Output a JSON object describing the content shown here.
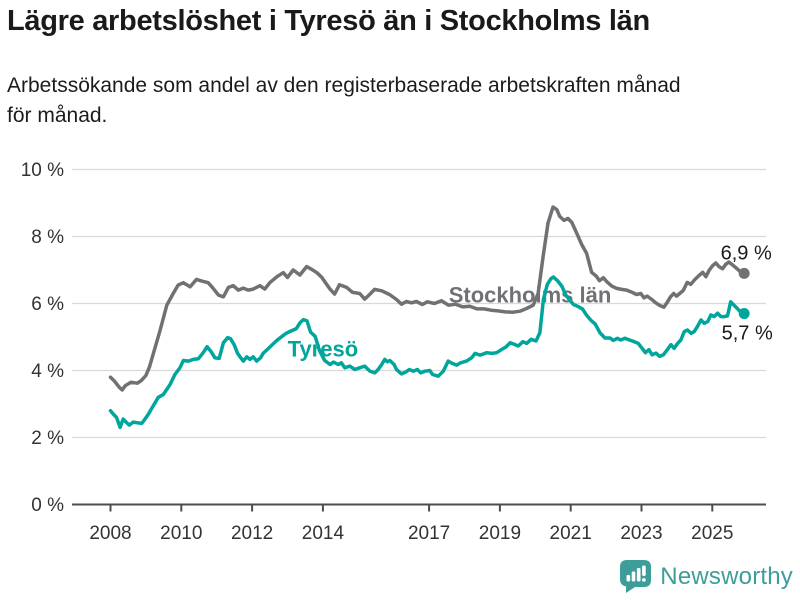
{
  "header": {
    "title": "Lägre arbetslöshet i Tyresö än i Stockholms län",
    "subtitle_line1": "Arbetssökande som andel av den registerbaserade arbetskraften månad",
    "subtitle_line2": "för månad."
  },
  "footer": {
    "brand": "Newsworthy",
    "brand_color": "#3d9d99",
    "logo_icon": "bar-chart-speech-bubble-icon"
  },
  "colors": {
    "grid": "#d9d9d9",
    "axis": "#4c4c4c",
    "tick_text": "#333333",
    "value_label_text": "#1a1a1a"
  },
  "chart_data": {
    "type": "line",
    "title": "Lägre arbetslöshet i Tyresö än i Stockholms län",
    "subtitle": "Arbetssökande som andel av den registerbaserade arbetskraften månad för månad.",
    "unit": "%",
    "grid": "horizontal",
    "legend_position": "inline-labels",
    "x_axis": {
      "ticks": [
        2008,
        2010,
        2012,
        2014,
        2017,
        2019,
        2021,
        2023,
        2025
      ],
      "tick_labels": [
        "2008",
        "2010",
        "2012",
        "2014",
        "2017",
        "2019",
        "2021",
        "2023",
        "2025"
      ],
      "range": [
        2006.9,
        2026.5
      ]
    },
    "y_axis": {
      "ticks": [
        0,
        2,
        4,
        6,
        8,
        10
      ],
      "tick_labels": [
        "0 %",
        "2 %",
        "4 %",
        "6 %",
        "8 %",
        "10 %"
      ],
      "range": [
        0,
        10
      ]
    },
    "series": [
      {
        "name": "Stockholms län",
        "slug": "stockholms-lan",
        "color": "#717175",
        "end_label": "6,9 %",
        "end_value": 6.9,
        "label_anchor": {
          "x": 2019.85,
          "y": 6.27
        },
        "points": [
          [
            2008.0,
            3.8
          ],
          [
            2008.1,
            3.7
          ],
          [
            2008.25,
            3.5
          ],
          [
            2008.33,
            3.42
          ],
          [
            2008.42,
            3.55
          ],
          [
            2008.58,
            3.65
          ],
          [
            2008.75,
            3.62
          ],
          [
            2008.87,
            3.7
          ],
          [
            2009.0,
            3.85
          ],
          [
            2009.1,
            4.1
          ],
          [
            2009.21,
            4.5
          ],
          [
            2009.4,
            5.2
          ],
          [
            2009.59,
            5.95
          ],
          [
            2009.77,
            6.3
          ],
          [
            2009.91,
            6.55
          ],
          [
            2010.06,
            6.62
          ],
          [
            2010.25,
            6.5
          ],
          [
            2010.43,
            6.72
          ],
          [
            2010.58,
            6.67
          ],
          [
            2010.76,
            6.62
          ],
          [
            2010.9,
            6.45
          ],
          [
            2011.05,
            6.25
          ],
          [
            2011.19,
            6.2
          ],
          [
            2011.33,
            6.48
          ],
          [
            2011.47,
            6.53
          ],
          [
            2011.61,
            6.4
          ],
          [
            2011.75,
            6.46
          ],
          [
            2011.89,
            6.4
          ],
          [
            2012.03,
            6.43
          ],
          [
            2012.22,
            6.53
          ],
          [
            2012.36,
            6.43
          ],
          [
            2012.5,
            6.62
          ],
          [
            2012.7,
            6.8
          ],
          [
            2012.88,
            6.92
          ],
          [
            2013.0,
            6.78
          ],
          [
            2013.16,
            7.0
          ],
          [
            2013.35,
            6.85
          ],
          [
            2013.54,
            7.1
          ],
          [
            2013.68,
            7.02
          ],
          [
            2013.83,
            6.92
          ],
          [
            2013.97,
            6.78
          ],
          [
            2014.2,
            6.43
          ],
          [
            2014.33,
            6.28
          ],
          [
            2014.47,
            6.56
          ],
          [
            2014.67,
            6.48
          ],
          [
            2014.84,
            6.33
          ],
          [
            2015.04,
            6.3
          ],
          [
            2015.18,
            6.13
          ],
          [
            2015.32,
            6.27
          ],
          [
            2015.46,
            6.42
          ],
          [
            2015.66,
            6.38
          ],
          [
            2015.88,
            6.27
          ],
          [
            2016.08,
            6.12
          ],
          [
            2016.22,
            5.98
          ],
          [
            2016.36,
            6.06
          ],
          [
            2016.5,
            6.02
          ],
          [
            2016.64,
            6.06
          ],
          [
            2016.81,
            5.97
          ],
          [
            2016.95,
            6.05
          ],
          [
            2017.15,
            6.0
          ],
          [
            2017.35,
            6.08
          ],
          [
            2017.55,
            5.95
          ],
          [
            2017.75,
            5.98
          ],
          [
            2017.95,
            5.9
          ],
          [
            2018.15,
            5.92
          ],
          [
            2018.35,
            5.84
          ],
          [
            2018.55,
            5.84
          ],
          [
            2018.75,
            5.8
          ],
          [
            2018.95,
            5.78
          ],
          [
            2019.15,
            5.75
          ],
          [
            2019.37,
            5.74
          ],
          [
            2019.57,
            5.77
          ],
          [
            2019.75,
            5.85
          ],
          [
            2019.94,
            5.95
          ],
          [
            2020.08,
            6.3
          ],
          [
            2020.22,
            7.4
          ],
          [
            2020.36,
            8.4
          ],
          [
            2020.5,
            8.88
          ],
          [
            2020.61,
            8.8
          ],
          [
            2020.69,
            8.6
          ],
          [
            2020.81,
            8.48
          ],
          [
            2020.92,
            8.54
          ],
          [
            2021.03,
            8.42
          ],
          [
            2021.17,
            8.1
          ],
          [
            2021.31,
            7.76
          ],
          [
            2021.45,
            7.5
          ],
          [
            2021.59,
            6.93
          ],
          [
            2021.73,
            6.81
          ],
          [
            2021.81,
            6.68
          ],
          [
            2021.92,
            6.77
          ],
          [
            2022.03,
            6.64
          ],
          [
            2022.16,
            6.52
          ],
          [
            2022.3,
            6.45
          ],
          [
            2022.44,
            6.42
          ],
          [
            2022.58,
            6.4
          ],
          [
            2022.72,
            6.34
          ],
          [
            2022.86,
            6.27
          ],
          [
            2022.98,
            6.3
          ],
          [
            2023.07,
            6.17
          ],
          [
            2023.16,
            6.22
          ],
          [
            2023.29,
            6.12
          ],
          [
            2023.4,
            6.02
          ],
          [
            2023.52,
            5.94
          ],
          [
            2023.63,
            5.89
          ],
          [
            2023.73,
            6.04
          ],
          [
            2023.82,
            6.2
          ],
          [
            2023.91,
            6.3
          ],
          [
            2023.99,
            6.22
          ],
          [
            2024.08,
            6.3
          ],
          [
            2024.18,
            6.39
          ],
          [
            2024.29,
            6.63
          ],
          [
            2024.39,
            6.57
          ],
          [
            2024.51,
            6.72
          ],
          [
            2024.63,
            6.84
          ],
          [
            2024.73,
            6.93
          ],
          [
            2024.82,
            6.8
          ],
          [
            2024.91,
            6.99
          ],
          [
            2025.01,
            7.13
          ],
          [
            2025.1,
            7.21
          ],
          [
            2025.19,
            7.1
          ],
          [
            2025.29,
            7.04
          ],
          [
            2025.38,
            7.17
          ],
          [
            2025.47,
            7.24
          ],
          [
            2025.63,
            7.1
          ],
          [
            2025.77,
            6.97
          ],
          [
            2025.9,
            6.9
          ]
        ]
      },
      {
        "name": "Tyresö",
        "slug": "tyreso",
        "color": "#00a59b",
        "end_label": "5,7 %",
        "end_value": 5.7,
        "label_anchor": {
          "x": 2014.0,
          "y": 4.66
        },
        "points": [
          [
            2008.0,
            2.8
          ],
          [
            2008.08,
            2.7
          ],
          [
            2008.17,
            2.6
          ],
          [
            2008.27,
            2.3
          ],
          [
            2008.36,
            2.55
          ],
          [
            2008.46,
            2.44
          ],
          [
            2008.53,
            2.37
          ],
          [
            2008.64,
            2.46
          ],
          [
            2008.77,
            2.44
          ],
          [
            2008.88,
            2.42
          ],
          [
            2008.97,
            2.54
          ],
          [
            2009.07,
            2.7
          ],
          [
            2009.21,
            2.95
          ],
          [
            2009.35,
            3.2
          ],
          [
            2009.49,
            3.28
          ],
          [
            2009.68,
            3.58
          ],
          [
            2009.82,
            3.88
          ],
          [
            2009.96,
            4.08
          ],
          [
            2010.06,
            4.3
          ],
          [
            2010.2,
            4.28
          ],
          [
            2010.34,
            4.33
          ],
          [
            2010.48,
            4.35
          ],
          [
            2010.62,
            4.53
          ],
          [
            2010.73,
            4.71
          ],
          [
            2010.83,
            4.58
          ],
          [
            2010.95,
            4.38
          ],
          [
            2011.07,
            4.36
          ],
          [
            2011.19,
            4.83
          ],
          [
            2011.31,
            4.98
          ],
          [
            2011.39,
            4.95
          ],
          [
            2011.49,
            4.78
          ],
          [
            2011.59,
            4.51
          ],
          [
            2011.68,
            4.38
          ],
          [
            2011.75,
            4.28
          ],
          [
            2011.85,
            4.41
          ],
          [
            2011.94,
            4.33
          ],
          [
            2012.03,
            4.41
          ],
          [
            2012.13,
            4.28
          ],
          [
            2012.24,
            4.38
          ],
          [
            2012.31,
            4.51
          ],
          [
            2012.41,
            4.61
          ],
          [
            2012.55,
            4.75
          ],
          [
            2012.7,
            4.9
          ],
          [
            2012.85,
            5.02
          ],
          [
            2012.95,
            5.1
          ],
          [
            2013.1,
            5.18
          ],
          [
            2013.25,
            5.25
          ],
          [
            2013.35,
            5.42
          ],
          [
            2013.45,
            5.52
          ],
          [
            2013.55,
            5.48
          ],
          [
            2013.65,
            5.15
          ],
          [
            2013.78,
            5.02
          ],
          [
            2013.9,
            4.6
          ],
          [
            2014.05,
            4.3
          ],
          [
            2014.2,
            4.18
          ],
          [
            2014.3,
            4.25
          ],
          [
            2014.43,
            4.18
          ],
          [
            2014.52,
            4.23
          ],
          [
            2014.62,
            4.08
          ],
          [
            2014.76,
            4.13
          ],
          [
            2014.9,
            4.03
          ],
          [
            2015.04,
            4.08
          ],
          [
            2015.18,
            4.13
          ],
          [
            2015.33,
            3.98
          ],
          [
            2015.47,
            3.93
          ],
          [
            2015.56,
            4.03
          ],
          [
            2015.66,
            4.18
          ],
          [
            2015.75,
            4.33
          ],
          [
            2015.82,
            4.26
          ],
          [
            2015.89,
            4.3
          ],
          [
            2016.01,
            4.18
          ],
          [
            2016.08,
            4.03
          ],
          [
            2016.22,
            3.9
          ],
          [
            2016.35,
            3.96
          ],
          [
            2016.44,
            4.03
          ],
          [
            2016.55,
            3.98
          ],
          [
            2016.67,
            4.03
          ],
          [
            2016.76,
            3.93
          ],
          [
            2016.88,
            3.98
          ],
          [
            2017.02,
            4.0
          ],
          [
            2017.1,
            3.88
          ],
          [
            2017.26,
            3.83
          ],
          [
            2017.4,
            3.98
          ],
          [
            2017.54,
            4.28
          ],
          [
            2017.66,
            4.21
          ],
          [
            2017.78,
            4.16
          ],
          [
            2017.89,
            4.23
          ],
          [
            2018.06,
            4.28
          ],
          [
            2018.2,
            4.38
          ],
          [
            2018.3,
            4.51
          ],
          [
            2018.44,
            4.46
          ],
          [
            2018.63,
            4.53
          ],
          [
            2018.77,
            4.51
          ],
          [
            2018.91,
            4.53
          ],
          [
            2019.05,
            4.63
          ],
          [
            2019.17,
            4.7
          ],
          [
            2019.29,
            4.83
          ],
          [
            2019.41,
            4.78
          ],
          [
            2019.52,
            4.73
          ],
          [
            2019.65,
            4.86
          ],
          [
            2019.76,
            4.81
          ],
          [
            2019.88,
            4.93
          ],
          [
            2020.02,
            4.88
          ],
          [
            2020.13,
            5.13
          ],
          [
            2020.23,
            6.12
          ],
          [
            2020.34,
            6.57
          ],
          [
            2020.44,
            6.74
          ],
          [
            2020.51,
            6.79
          ],
          [
            2020.62,
            6.69
          ],
          [
            2020.75,
            6.52
          ],
          [
            2020.87,
            6.24
          ],
          [
            2020.96,
            6.12
          ],
          [
            2021.08,
            5.97
          ],
          [
            2021.19,
            5.92
          ],
          [
            2021.33,
            5.84
          ],
          [
            2021.45,
            5.65
          ],
          [
            2021.57,
            5.5
          ],
          [
            2021.69,
            5.39
          ],
          [
            2021.83,
            5.12
          ],
          [
            2021.97,
            4.97
          ],
          [
            2022.11,
            4.97
          ],
          [
            2022.2,
            4.9
          ],
          [
            2022.32,
            4.96
          ],
          [
            2022.41,
            4.91
          ],
          [
            2022.53,
            4.96
          ],
          [
            2022.66,
            4.91
          ],
          [
            2022.77,
            4.87
          ],
          [
            2022.91,
            4.81
          ],
          [
            2023.02,
            4.66
          ],
          [
            2023.11,
            4.53
          ],
          [
            2023.21,
            4.62
          ],
          [
            2023.3,
            4.47
          ],
          [
            2023.41,
            4.52
          ],
          [
            2023.51,
            4.42
          ],
          [
            2023.62,
            4.47
          ],
          [
            2023.73,
            4.62
          ],
          [
            2023.83,
            4.77
          ],
          [
            2023.92,
            4.66
          ],
          [
            2024.02,
            4.81
          ],
          [
            2024.11,
            4.91
          ],
          [
            2024.21,
            5.16
          ],
          [
            2024.3,
            5.21
          ],
          [
            2024.4,
            5.11
          ],
          [
            2024.49,
            5.16
          ],
          [
            2024.58,
            5.31
          ],
          [
            2024.68,
            5.51
          ],
          [
            2024.77,
            5.41
          ],
          [
            2024.87,
            5.46
          ],
          [
            2024.96,
            5.66
          ],
          [
            2025.05,
            5.61
          ],
          [
            2025.15,
            5.71
          ],
          [
            2025.24,
            5.61
          ],
          [
            2025.33,
            5.61
          ],
          [
            2025.43,
            5.63
          ],
          [
            2025.52,
            6.05
          ],
          [
            2025.64,
            5.92
          ],
          [
            2025.76,
            5.79
          ],
          [
            2025.9,
            5.7
          ]
        ]
      }
    ]
  }
}
